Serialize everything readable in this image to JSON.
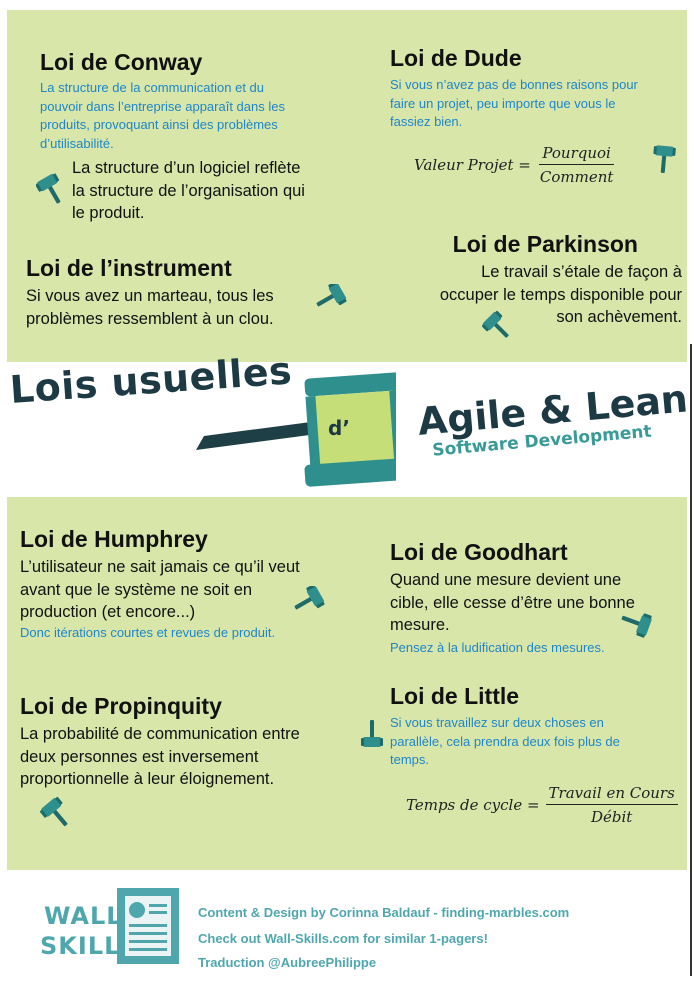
{
  "laws": {
    "conway": {
      "title": "Loi de Conway",
      "blue": [
        "La structure de la communication et du",
        "pouvoir dans l’entreprise apparaît dans les",
        "produits, provoquant ainsi des problèmes",
        "d’utilisabilité."
      ],
      "text": [
        "La structure d’un logiciel reflète",
        "la structure de l’organisation qui",
        "le produit."
      ]
    },
    "dude": {
      "title": "Loi de Dude",
      "blue": [
        "Si vous n’avez pas de bonnes raisons pour",
        "faire un projet, peu importe que vous le",
        "fassiez bien."
      ],
      "formula": {
        "lhs": "Valeur Projet =",
        "num": "Pourquoi",
        "den": "Comment"
      }
    },
    "instrument": {
      "title": "Loi de l’instrument",
      "text": [
        "Si vous avez un marteau, tous les",
        "problèmes ressemblent à un clou."
      ]
    },
    "parkinson": {
      "title": "Loi de Parkinson",
      "text": [
        "Le travail s’étale de façon à",
        "occuper le temps disponible pour",
        "son achèvement."
      ]
    },
    "humphrey": {
      "title": "Loi de Humphrey",
      "text": [
        "L’utilisateur ne sait jamais ce qu’il veut",
        "avant que le système ne soit en",
        "production (et encore...)"
      ],
      "blue": [
        "Donc itérations courtes et revues de produit."
      ]
    },
    "goodhart": {
      "title": "Loi de Goodhart",
      "text": [
        "Quand une mesure devient une",
        "cible, elle cesse d’être une bonne",
        "mesure."
      ],
      "blue": [
        "Pensez à la ludification des mesures."
      ]
    },
    "propinquity": {
      "title": "Loi de Propinquity",
      "text": [
        "La probabilité de communication entre",
        "deux personnes est inversement",
        "proportionnelle à leur éloignement."
      ]
    },
    "little": {
      "title": "Loi de Little",
      "blue": [
        "Si vous travaillez sur deux choses en",
        "parallèle, cela prendra deux fois plus de",
        "temps."
      ],
      "formula": {
        "lhs": "Temps de cycle =",
        "num": "Travail en Cours",
        "den": "Débit"
      }
    }
  },
  "banner": {
    "left": "Lois usuelles",
    "gavel_label": "d’",
    "right_big": "Agile & Lean",
    "right_small": "Software Development"
  },
  "footer": {
    "logo_top": "WALL-",
    "logo_bottom": "SKILLS",
    "line1": "Content & Design by Corinna Baldauf - finding-marbles.com",
    "line2": "Check out Wall-Skills.com for similar 1-pagers!",
    "line3": "Traduction @AubreePhilippe"
  },
  "colors": {
    "panel": "#d8e6aa",
    "teal": "#2f8f8d",
    "blue_text": "#1f86c8",
    "dark": "#1d3a44"
  }
}
